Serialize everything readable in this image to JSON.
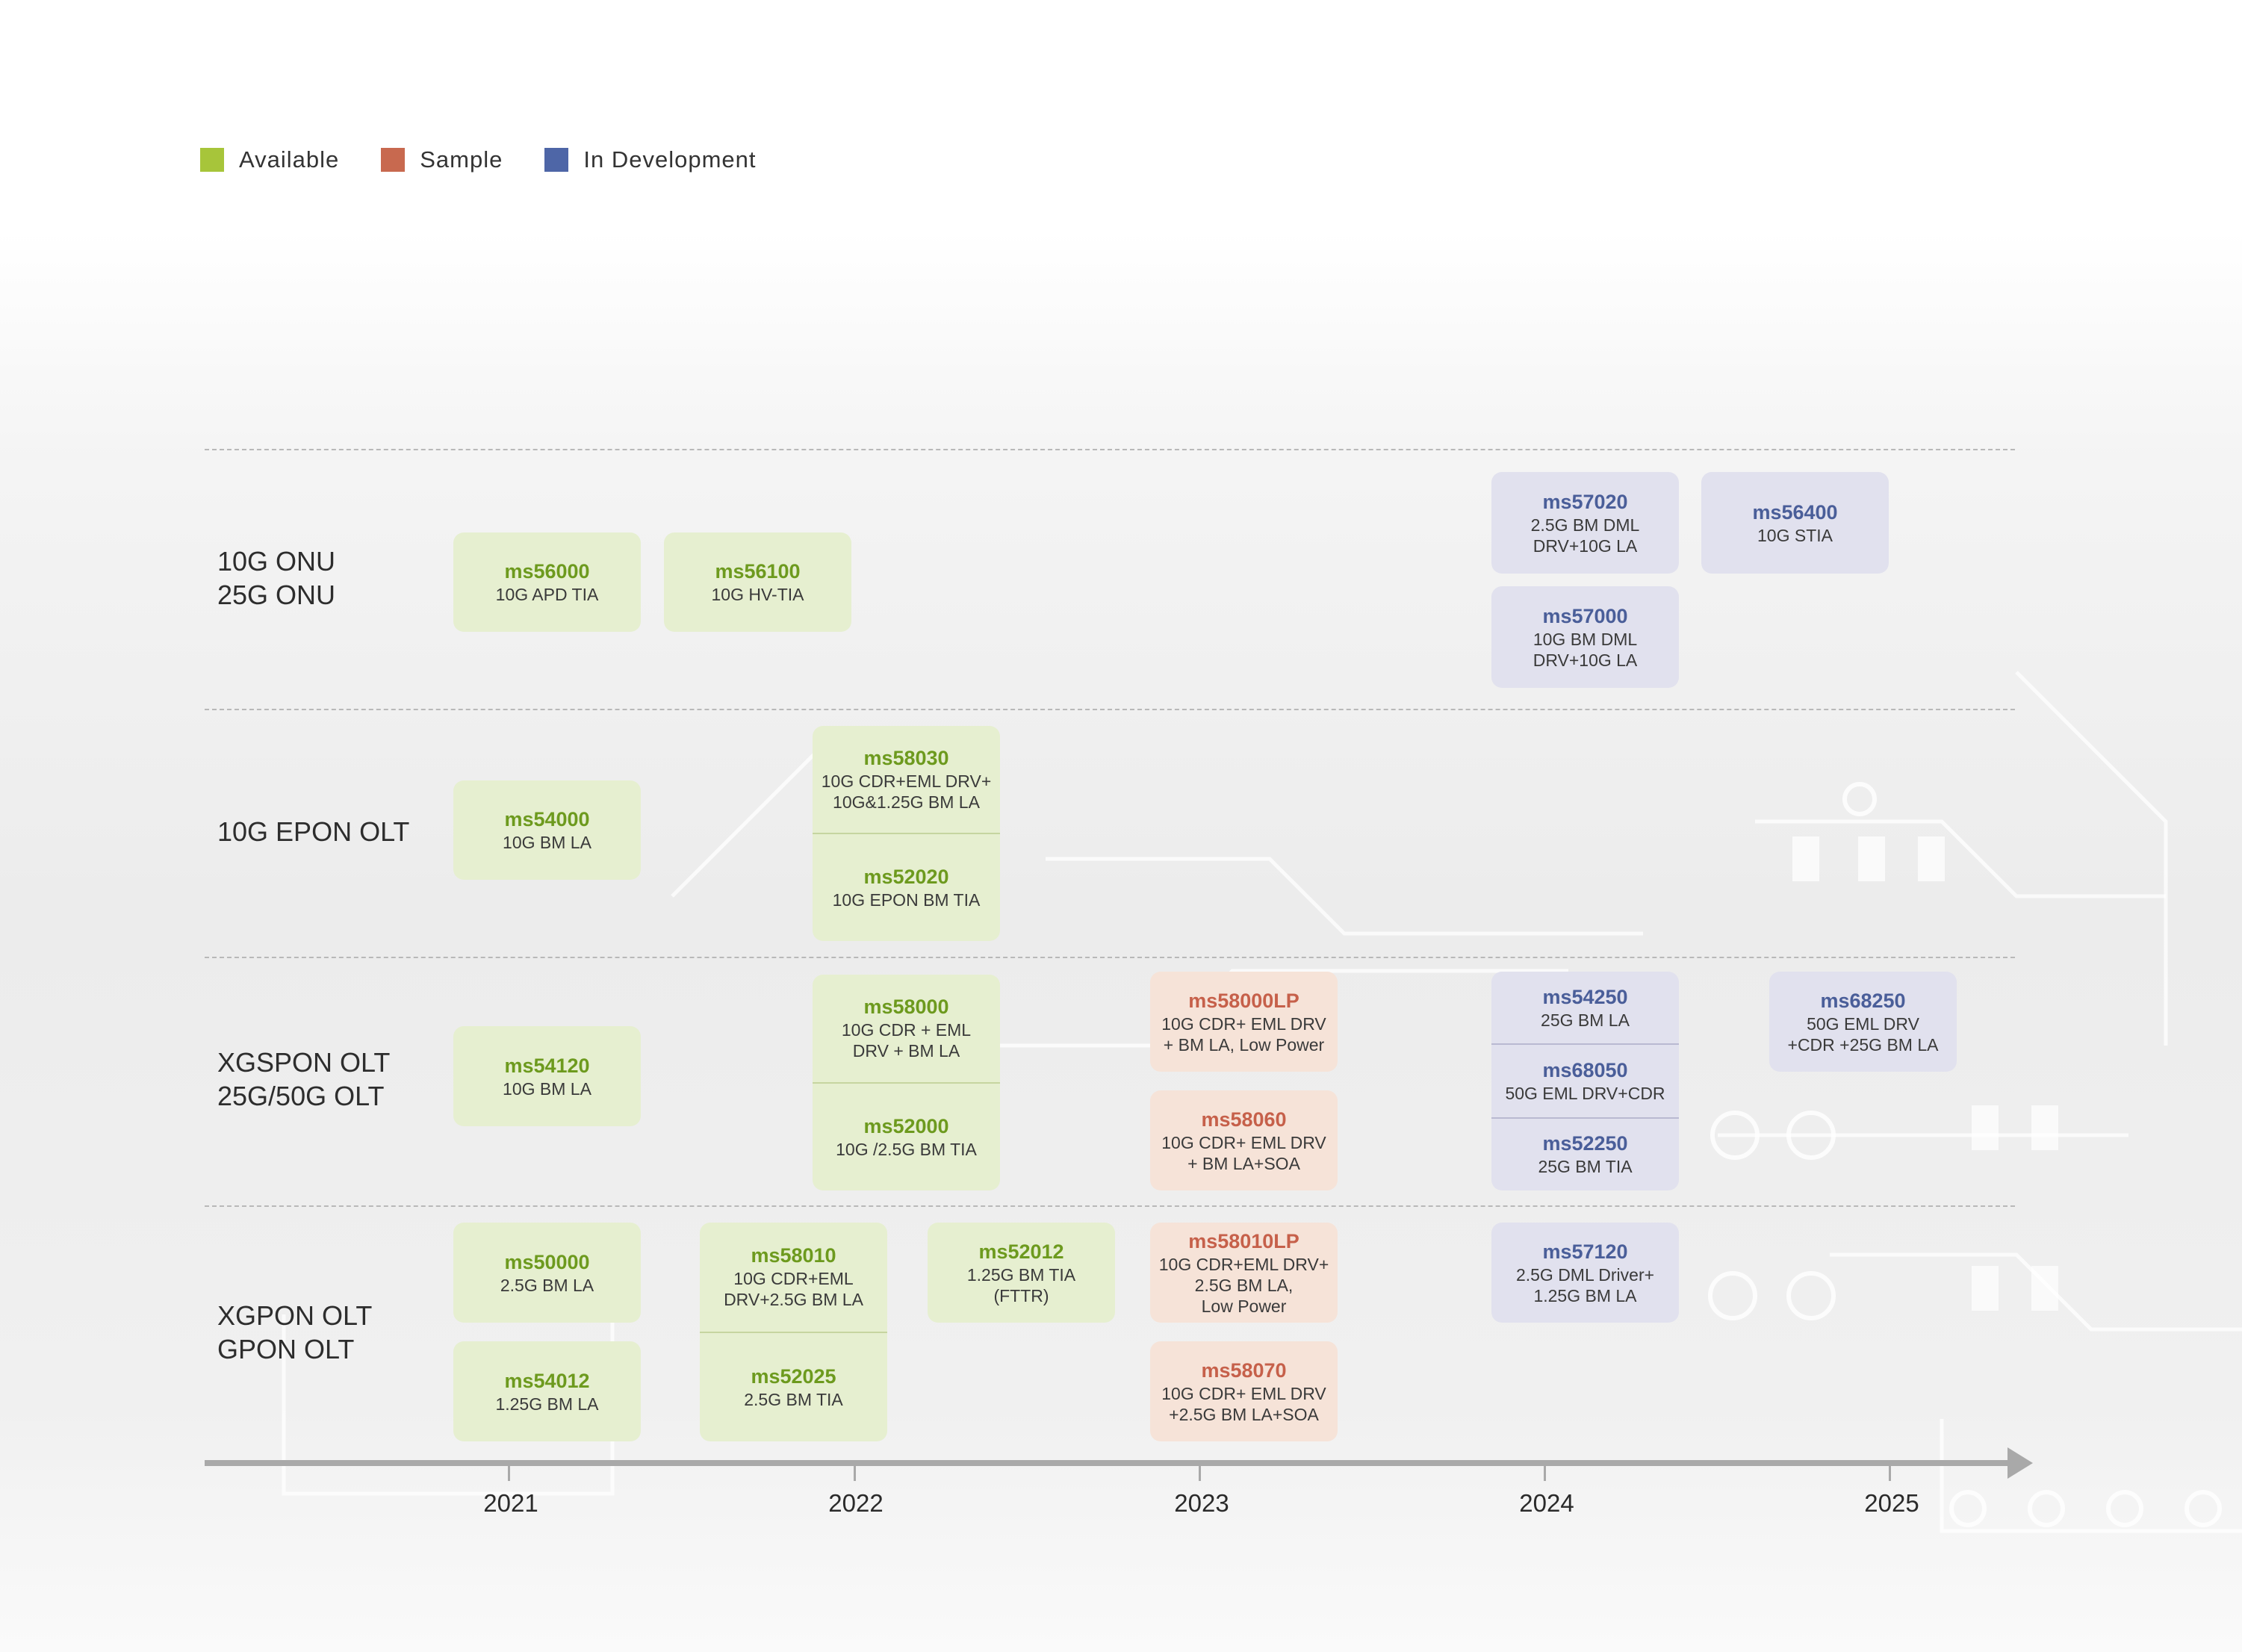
{
  "legend": [
    {
      "label": "Available",
      "color": "#a7c53a"
    },
    {
      "label": "Sample",
      "color": "#c8694f"
    },
    {
      "label": "In Development",
      "color": "#4e66a7"
    }
  ],
  "rows": [
    {
      "label": "10G ONU\n25G ONU"
    },
    {
      "label": "10G EPON OLT"
    },
    {
      "label": "XGSPON OLT\n25G/50G OLT"
    },
    {
      "label": "XGPON OLT\nGPON OLT"
    }
  ],
  "timeline": {
    "years": [
      "2021",
      "2022",
      "2023",
      "2024",
      "2025"
    ]
  },
  "cards": [
    {
      "status": "available",
      "items": [
        {
          "code": "ms56000",
          "desc": "10G APD TIA"
        }
      ]
    },
    {
      "status": "available",
      "items": [
        {
          "code": "ms56100",
          "desc": "10G HV-TIA"
        }
      ]
    },
    {
      "status": "dev",
      "items": [
        {
          "code": "ms57020",
          "desc": "2.5G BM DML\nDRV+10G LA"
        }
      ]
    },
    {
      "status": "dev",
      "items": [
        {
          "code": "ms56400",
          "desc": "10G STIA"
        }
      ]
    },
    {
      "status": "dev",
      "items": [
        {
          "code": "ms57000",
          "desc": "10G BM DML\nDRV+10G LA"
        }
      ]
    },
    {
      "status": "available",
      "items": [
        {
          "code": "ms54000",
          "desc": "10G BM LA"
        }
      ]
    },
    {
      "status": "available",
      "items": [
        {
          "code": "ms58030",
          "desc": "10G CDR+EML DRV+\n10G&1.25G BM LA"
        },
        {
          "code": "ms52020",
          "desc": "10G EPON BM TIA"
        }
      ]
    },
    {
      "status": "available",
      "items": [
        {
          "code": "ms54120",
          "desc": "10G BM LA"
        }
      ]
    },
    {
      "status": "available",
      "items": [
        {
          "code": "ms58000",
          "desc": "10G CDR + EML\nDRV + BM LA"
        },
        {
          "code": "ms52000",
          "desc": "10G /2.5G BM TIA"
        }
      ]
    },
    {
      "status": "sample",
      "items": [
        {
          "code": "ms58000LP",
          "desc": "10G CDR+ EML DRV\n+ BM LA, Low Power"
        }
      ]
    },
    {
      "status": "sample",
      "items": [
        {
          "code": "ms58060",
          "desc": "10G CDR+ EML DRV\n+ BM LA+SOA"
        }
      ]
    },
    {
      "status": "dev",
      "items": [
        {
          "code": "ms54250",
          "desc": "25G BM LA"
        },
        {
          "code": "ms68050",
          "desc": "50G EML DRV+CDR"
        },
        {
          "code": "ms52250",
          "desc": "25G BM TIA"
        }
      ]
    },
    {
      "status": "dev",
      "items": [
        {
          "code": "ms68250",
          "desc": "50G EML DRV\n+CDR +25G BM LA"
        }
      ]
    },
    {
      "status": "available",
      "items": [
        {
          "code": "ms50000",
          "desc": "2.5G BM LA"
        }
      ]
    },
    {
      "status": "available",
      "items": [
        {
          "code": "ms54012",
          "desc": "1.25G BM LA"
        }
      ]
    },
    {
      "status": "available",
      "items": [
        {
          "code": "ms58010",
          "desc": "10G CDR+EML\nDRV+2.5G BM LA"
        },
        {
          "code": "ms52025",
          "desc": "2.5G BM TIA"
        }
      ]
    },
    {
      "status": "available",
      "items": [
        {
          "code": "ms52012",
          "desc": "1.25G BM TIA\n(FTTR)"
        }
      ]
    },
    {
      "status": "sample",
      "items": [
        {
          "code": "ms58010LP",
          "desc": "10G CDR+EML DRV+\n2.5G BM LA,\nLow Power"
        }
      ]
    },
    {
      "status": "sample",
      "items": [
        {
          "code": "ms58070",
          "desc": "10G CDR+ EML DRV\n+2.5G BM LA+SOA"
        }
      ]
    },
    {
      "status": "dev",
      "items": [
        {
          "code": "ms57120",
          "desc": "2.5G DML Driver+\n1.25G BM LA"
        }
      ]
    }
  ]
}
